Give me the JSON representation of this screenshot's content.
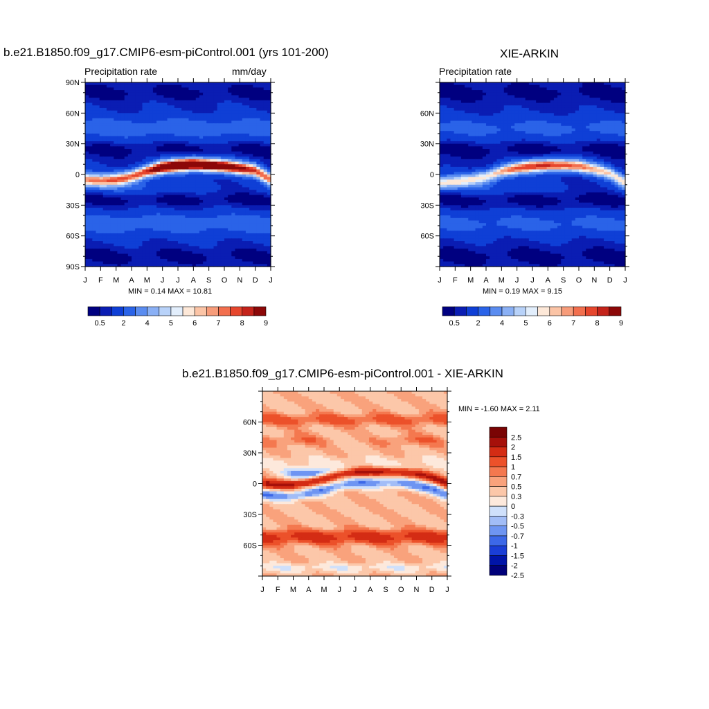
{
  "colors": {
    "abs_levels": [
      "#000080",
      "#0a1db3",
      "#0f3fd6",
      "#2a63e8",
      "#5a8cf0",
      "#8ab0f5",
      "#b8d2f9",
      "#e2eefc",
      "#fde8d8",
      "#fbc4a6",
      "#f79c7a",
      "#f26f4e",
      "#e6462d",
      "#c4231a",
      "#8c0808"
    ],
    "diff_levels": [
      "#00007a",
      "#0014a8",
      "#1a3ed6",
      "#3c68e8",
      "#6e95f2",
      "#a2bdf7",
      "#cfe0fb",
      "#fde9dc",
      "#fcc7a9",
      "#f9a27c",
      "#f4784f",
      "#ec512a",
      "#d42c14",
      "#a6100a",
      "#7a0404"
    ]
  },
  "charts": {
    "model": {
      "title": "b.e21.B1850.f09_g17.CMIP6-esm-piControl.001 (yrs 101-200)",
      "left_label": "Precipitation rate",
      "right_label": "mm/day",
      "minmax": "MIN =   0.14 MAX =  10.81"
    },
    "obs": {
      "title": "XIE-ARKIN",
      "left_label": "Precipitation rate",
      "minmax": "MIN =   0.19 MAX =   9.15"
    },
    "diff": {
      "title": "b.e21.B1850.f09_g17.CMIP6-esm-piControl.001 - XIE-ARKIN",
      "minmax": "MIN =  -1.60 MAX =   2.11"
    }
  },
  "chart_data": [
    {
      "type": "heatmap",
      "title": "b.e21.B1850.f09_g17.CMIP6-esm-piControl.001 (yrs 101-200)",
      "subtitle_left": "Precipitation rate",
      "units": "mm/day",
      "x_ticks": [
        "J",
        "F",
        "M",
        "A",
        "M",
        "J",
        "J",
        "A",
        "S",
        "O",
        "N",
        "D",
        "J"
      ],
      "y_ticks": [
        "90N",
        "60N",
        "30N",
        "0",
        "30S",
        "60S",
        "90S"
      ],
      "ylim": [
        -90,
        90
      ],
      "min": 0.14,
      "max": 10.81,
      "colorbar_labels": [
        "0.5",
        "2",
        "4",
        "5",
        "6",
        "7",
        "8",
        "9"
      ],
      "itcz_lat_by_month": [
        -5,
        -6,
        -5,
        -2,
        3,
        7,
        9,
        10,
        9,
        8,
        6,
        4,
        -5
      ],
      "itcz_peak_by_month": [
        6.5,
        6.2,
        6.6,
        7.0,
        8.0,
        9.6,
        10.5,
        10.8,
        10.3,
        9.5,
        8.6,
        7.4,
        6.5
      ]
    },
    {
      "type": "heatmap",
      "title": "XIE-ARKIN",
      "subtitle_left": "Precipitation rate",
      "x_ticks": [
        "J",
        "F",
        "M",
        "A",
        "M",
        "J",
        "J",
        "A",
        "S",
        "O",
        "N",
        "D",
        "J"
      ],
      "y_ticks": [
        "60N",
        "30N",
        "0",
        "30S",
        "60S"
      ],
      "ylim": [
        -90,
        90
      ],
      "min": 0.19,
      "max": 9.15,
      "colorbar_labels": [
        "0.5",
        "2",
        "4",
        "5",
        "6",
        "7",
        "8",
        "9"
      ],
      "itcz_lat_by_month": [
        -8,
        -7,
        -5,
        -2,
        3,
        6,
        8,
        9,
        9,
        8,
        5,
        1,
        -8
      ],
      "itcz_peak_by_month": [
        5.8,
        5.6,
        5.6,
        6.0,
        7.2,
        8.2,
        8.7,
        9.1,
        8.6,
        8.0,
        7.0,
        6.2,
        5.8
      ]
    },
    {
      "type": "heatmap",
      "title": "b.e21.B1850.f09_g17.CMIP6-esm-piControl.001 - XIE-ARKIN",
      "x_ticks": [
        "J",
        "F",
        "M",
        "A",
        "M",
        "J",
        "J",
        "A",
        "S",
        "O",
        "N",
        "D",
        "J"
      ],
      "y_ticks": [
        "60N",
        "30N",
        "0",
        "30S",
        "60S"
      ],
      "ylim": [
        -90,
        90
      ],
      "min": -1.6,
      "max": 2.11,
      "colorbar_labels": [
        "2.5",
        "2",
        "1.5",
        "1",
        "0.7",
        "0.5",
        "0.3",
        "0",
        "-0.3",
        "-0.5",
        "-0.7",
        "-1",
        "-1.5",
        "-2",
        "-2.5"
      ]
    }
  ]
}
